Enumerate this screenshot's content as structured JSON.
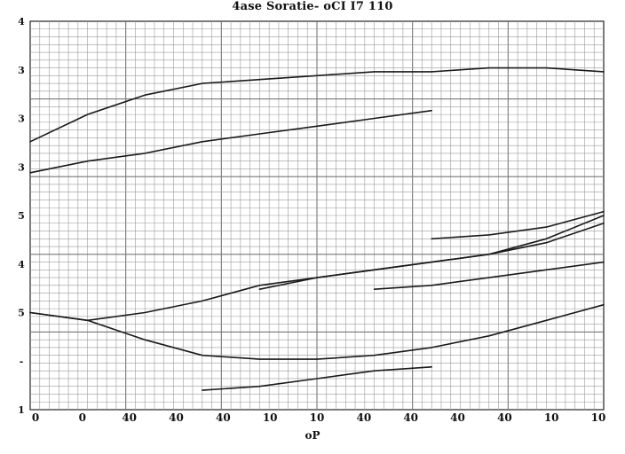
{
  "chart_data": {
    "type": "line",
    "title": "4ase Soratie- oCI I7 110",
    "xlabel": "oP",
    "ylabel": "",
    "x_tick_labels": [
      "0",
      "0",
      "40",
      "40",
      "40",
      "10",
      "10",
      "40",
      "40",
      "40",
      "40",
      "10",
      "10"
    ],
    "y_tick_labels": [
      "1",
      "-",
      "5",
      "4",
      "5",
      "3",
      "3",
      "3",
      "4"
    ],
    "x": [
      0,
      0.1,
      0.2,
      0.3,
      0.4,
      0.5,
      0.6,
      0.7,
      0.8,
      0.9,
      1.0
    ],
    "xlim": [
      0,
      1
    ],
    "ylim": [
      0,
      1
    ],
    "grid": true,
    "series": [
      {
        "values": [
          0.69,
          0.76,
          0.81,
          0.84,
          0.85,
          0.86,
          0.87,
          0.87,
          0.88,
          0.88,
          0.87
        ],
        "color": "#1a1a1a"
      },
      {
        "values": [
          0.61,
          0.64,
          0.66,
          0.69,
          0.71,
          0.73,
          0.75,
          0.77,
          null,
          null,
          null
        ],
        "color": "#1a1a1a"
      },
      {
        "values": [
          null,
          null,
          null,
          null,
          null,
          null,
          null,
          0.44,
          0.45,
          0.47,
          0.51
        ],
        "color": "#1a1a1a"
      },
      {
        "values": [
          null,
          null,
          null,
          null,
          0.31,
          0.34,
          0.36,
          0.38,
          0.4,
          0.43,
          0.48
        ],
        "color": "#1a1a1a"
      },
      {
        "values": [
          null,
          null,
          null,
          null,
          null,
          null,
          0.31,
          0.32,
          0.34,
          0.36,
          0.38
        ],
        "color": "#1a1a1a"
      },
      {
        "values": [
          0.25,
          0.23,
          0.25,
          0.28,
          0.32,
          0.34,
          0.36,
          0.38,
          0.4,
          0.44,
          0.5
        ],
        "color": "#1a1a1a"
      },
      {
        "values": [
          0.25,
          0.23,
          0.18,
          0.14,
          0.13,
          0.13,
          0.14,
          0.16,
          0.19,
          0.23,
          0.27
        ],
        "color": "#1a1a1a"
      },
      {
        "values": [
          null,
          null,
          null,
          0.05,
          0.06,
          0.08,
          0.1,
          0.11,
          null,
          null,
          null
        ],
        "color": "#1a1a1a"
      }
    ]
  }
}
